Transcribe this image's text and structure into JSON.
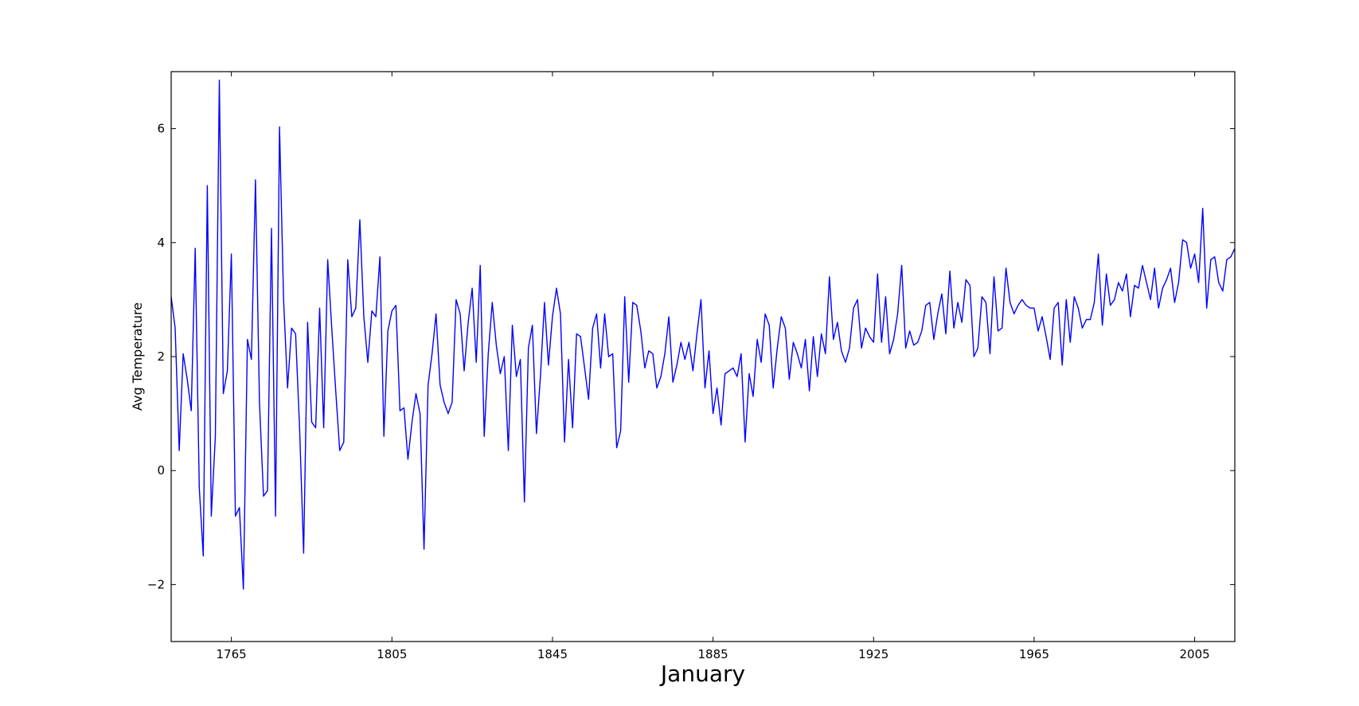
{
  "chart_data": {
    "type": "line",
    "title": "",
    "xlabel": "January",
    "ylabel": "Avg Temperature",
    "xlim": [
      1750,
      2015
    ],
    "ylim": [
      -3,
      7
    ],
    "grid": false,
    "color": "#0000ff",
    "x_ticks": [
      1765,
      1805,
      1845,
      1885,
      1925,
      1965,
      2005
    ],
    "x_tick_labels": [
      "1765",
      "1805",
      "1845",
      "1885",
      "1925",
      "1965",
      "2005"
    ],
    "y_ticks": [
      -2,
      0,
      2,
      4,
      6
    ],
    "y_tick_labels": [
      "−2",
      "0",
      "2",
      "4",
      "6"
    ],
    "series": [
      {
        "values": [
          [
            1750,
            3.05
          ],
          [
            1751,
            2.5
          ],
          [
            1752,
            0.35
          ],
          [
            1753,
            2.05
          ],
          [
            1754,
            1.6
          ],
          [
            1755,
            1.05
          ],
          [
            1756,
            3.9
          ],
          [
            1757,
            -0.3
          ],
          [
            1758,
            -1.5
          ],
          [
            1759,
            5.0
          ],
          [
            1760,
            -0.8
          ],
          [
            1761,
            0.6
          ],
          [
            1762,
            6.85
          ],
          [
            1763,
            1.35
          ],
          [
            1764,
            1.75
          ],
          [
            1765,
            3.8
          ],
          [
            1766,
            -0.8
          ],
          [
            1767,
            -0.65
          ],
          [
            1768,
            -2.08
          ],
          [
            1769,
            2.3
          ],
          [
            1770,
            1.95
          ],
          [
            1771,
            5.1
          ],
          [
            1772,
            1.2
          ],
          [
            1773,
            -0.45
          ],
          [
            1774,
            -0.35
          ],
          [
            1775,
            4.25
          ],
          [
            1776,
            -0.8
          ],
          [
            1777,
            6.03
          ],
          [
            1778,
            3.0
          ],
          [
            1779,
            1.45
          ],
          [
            1780,
            2.5
          ],
          [
            1781,
            2.4
          ],
          [
            1782,
            0.75
          ],
          [
            1783,
            -1.45
          ],
          [
            1784,
            2.6
          ],
          [
            1785,
            0.85
          ],
          [
            1786,
            0.75
          ],
          [
            1787,
            2.85
          ],
          [
            1788,
            0.75
          ],
          [
            1789,
            3.7
          ],
          [
            1790,
            2.5
          ],
          [
            1791,
            1.4
          ],
          [
            1792,
            0.35
          ],
          [
            1793,
            0.5
          ],
          [
            1794,
            3.7
          ],
          [
            1795,
            2.7
          ],
          [
            1796,
            2.85
          ],
          [
            1797,
            4.4
          ],
          [
            1798,
            2.7
          ],
          [
            1799,
            1.9
          ],
          [
            1800,
            2.8
          ],
          [
            1801,
            2.7
          ],
          [
            1802,
            3.75
          ],
          [
            1803,
            0.6
          ],
          [
            1804,
            2.45
          ],
          [
            1805,
            2.8
          ],
          [
            1806,
            2.9
          ],
          [
            1807,
            1.05
          ],
          [
            1808,
            1.1
          ],
          [
            1809,
            0.2
          ],
          [
            1810,
            0.85
          ],
          [
            1811,
            1.35
          ],
          [
            1812,
            1.0
          ],
          [
            1813,
            -1.38
          ],
          [
            1814,
            1.5
          ],
          [
            1815,
            2.05
          ],
          [
            1816,
            2.75
          ],
          [
            1817,
            1.5
          ],
          [
            1818,
            1.2
          ],
          [
            1819,
            1.0
          ],
          [
            1820,
            1.2
          ],
          [
            1821,
            3.0
          ],
          [
            1822,
            2.75
          ],
          [
            1823,
            1.75
          ],
          [
            1824,
            2.6
          ],
          [
            1825,
            3.2
          ],
          [
            1826,
            1.9
          ],
          [
            1827,
            3.6
          ],
          [
            1828,
            0.6
          ],
          [
            1829,
            2.05
          ],
          [
            1830,
            2.95
          ],
          [
            1831,
            2.2
          ],
          [
            1832,
            1.7
          ],
          [
            1833,
            2.0
          ],
          [
            1834,
            0.35
          ],
          [
            1835,
            2.55
          ],
          [
            1836,
            1.65
          ],
          [
            1837,
            1.95
          ],
          [
            1838,
            -0.55
          ],
          [
            1839,
            2.15
          ],
          [
            1840,
            2.55
          ],
          [
            1841,
            0.65
          ],
          [
            1842,
            1.65
          ],
          [
            1843,
            2.95
          ],
          [
            1844,
            1.85
          ],
          [
            1845,
            2.7
          ],
          [
            1846,
            3.2
          ],
          [
            1847,
            2.75
          ],
          [
            1848,
            0.5
          ],
          [
            1849,
            1.95
          ],
          [
            1850,
            0.75
          ],
          [
            1851,
            2.4
          ],
          [
            1852,
            2.35
          ],
          [
            1853,
            1.8
          ],
          [
            1854,
            1.25
          ],
          [
            1855,
            2.5
          ],
          [
            1856,
            2.75
          ],
          [
            1857,
            1.8
          ],
          [
            1858,
            2.75
          ],
          [
            1859,
            2.0
          ],
          [
            1860,
            2.05
          ],
          [
            1861,
            0.4
          ],
          [
            1862,
            0.7
          ],
          [
            1863,
            3.05
          ],
          [
            1864,
            1.55
          ],
          [
            1865,
            2.95
          ],
          [
            1866,
            2.9
          ],
          [
            1867,
            2.45
          ],
          [
            1868,
            1.8
          ],
          [
            1869,
            2.1
          ],
          [
            1870,
            2.05
          ],
          [
            1871,
            1.45
          ],
          [
            1872,
            1.65
          ],
          [
            1873,
            2.05
          ],
          [
            1874,
            2.7
          ],
          [
            1875,
            1.55
          ],
          [
            1876,
            1.85
          ],
          [
            1877,
            2.25
          ],
          [
            1878,
            1.95
          ],
          [
            1879,
            2.25
          ],
          [
            1880,
            1.75
          ],
          [
            1881,
            2.4
          ],
          [
            1882,
            3.0
          ],
          [
            1883,
            1.45
          ],
          [
            1884,
            2.1
          ],
          [
            1885,
            1.0
          ],
          [
            1886,
            1.45
          ],
          [
            1887,
            0.8
          ],
          [
            1888,
            1.7
          ],
          [
            1889,
            1.75
          ],
          [
            1890,
            1.8
          ],
          [
            1891,
            1.65
          ],
          [
            1892,
            2.05
          ],
          [
            1893,
            0.5
          ],
          [
            1894,
            1.7
          ],
          [
            1895,
            1.3
          ],
          [
            1896,
            2.3
          ],
          [
            1897,
            1.9
          ],
          [
            1898,
            2.75
          ],
          [
            1899,
            2.55
          ],
          [
            1900,
            1.45
          ],
          [
            1901,
            2.15
          ],
          [
            1902,
            2.7
          ],
          [
            1903,
            2.5
          ],
          [
            1904,
            1.6
          ],
          [
            1905,
            2.25
          ],
          [
            1906,
            2.05
          ],
          [
            1907,
            1.8
          ],
          [
            1908,
            2.3
          ],
          [
            1909,
            1.4
          ],
          [
            1910,
            2.35
          ],
          [
            1911,
            1.65
          ],
          [
            1912,
            2.4
          ],
          [
            1913,
            2.05
          ],
          [
            1914,
            3.4
          ],
          [
            1915,
            2.3
          ],
          [
            1916,
            2.6
          ],
          [
            1917,
            2.1
          ],
          [
            1918,
            1.9
          ],
          [
            1919,
            2.15
          ],
          [
            1920,
            2.85
          ],
          [
            1921,
            3.0
          ],
          [
            1922,
            2.15
          ],
          [
            1923,
            2.5
          ],
          [
            1924,
            2.35
          ],
          [
            1925,
            2.25
          ],
          [
            1926,
            3.45
          ],
          [
            1927,
            2.25
          ],
          [
            1928,
            3.05
          ],
          [
            1929,
            2.05
          ],
          [
            1930,
            2.3
          ],
          [
            1931,
            2.75
          ],
          [
            1932,
            3.6
          ],
          [
            1933,
            2.15
          ],
          [
            1934,
            2.45
          ],
          [
            1935,
            2.2
          ],
          [
            1936,
            2.25
          ],
          [
            1937,
            2.45
          ],
          [
            1938,
            2.9
          ],
          [
            1939,
            2.95
          ],
          [
            1940,
            2.3
          ],
          [
            1941,
            2.75
          ],
          [
            1942,
            3.1
          ],
          [
            1943,
            2.4
          ],
          [
            1944,
            3.5
          ],
          [
            1945,
            2.5
          ],
          [
            1946,
            2.95
          ],
          [
            1947,
            2.6
          ],
          [
            1948,
            3.35
          ],
          [
            1949,
            3.25
          ],
          [
            1950,
            2.0
          ],
          [
            1951,
            2.15
          ],
          [
            1952,
            3.05
          ],
          [
            1953,
            2.95
          ],
          [
            1954,
            2.05
          ],
          [
            1955,
            3.4
          ],
          [
            1956,
            2.45
          ],
          [
            1957,
            2.5
          ],
          [
            1958,
            3.55
          ],
          [
            1959,
            2.95
          ],
          [
            1960,
            2.75
          ],
          [
            1961,
            2.9
          ],
          [
            1962,
            3.0
          ],
          [
            1963,
            2.9
          ],
          [
            1964,
            2.85
          ],
          [
            1965,
            2.85
          ],
          [
            1966,
            2.45
          ],
          [
            1967,
            2.7
          ],
          [
            1968,
            2.35
          ],
          [
            1969,
            1.95
          ],
          [
            1970,
            2.85
          ],
          [
            1971,
            2.95
          ],
          [
            1972,
            1.85
          ],
          [
            1973,
            3.0
          ],
          [
            1974,
            2.25
          ],
          [
            1975,
            3.05
          ],
          [
            1976,
            2.85
          ],
          [
            1977,
            2.5
          ],
          [
            1978,
            2.65
          ],
          [
            1979,
            2.65
          ],
          [
            1980,
            2.95
          ],
          [
            1981,
            3.8
          ],
          [
            1982,
            2.55
          ],
          [
            1983,
            3.45
          ],
          [
            1984,
            2.9
          ],
          [
            1985,
            3.0
          ],
          [
            1986,
            3.3
          ],
          [
            1987,
            3.15
          ],
          [
            1988,
            3.45
          ],
          [
            1989,
            2.7
          ],
          [
            1990,
            3.25
          ],
          [
            1991,
            3.2
          ],
          [
            1992,
            3.6
          ],
          [
            1993,
            3.3
          ],
          [
            1994,
            3.0
          ],
          [
            1995,
            3.55
          ],
          [
            1996,
            2.85
          ],
          [
            1997,
            3.2
          ],
          [
            1998,
            3.35
          ],
          [
            1999,
            3.55
          ],
          [
            2000,
            2.95
          ],
          [
            2001,
            3.3
          ],
          [
            2002,
            4.05
          ],
          [
            2003,
            4.0
          ],
          [
            2004,
            3.55
          ],
          [
            2005,
            3.8
          ],
          [
            2006,
            3.3
          ],
          [
            2007,
            4.6
          ],
          [
            2008,
            2.85
          ],
          [
            2009,
            3.7
          ],
          [
            2010,
            3.75
          ],
          [
            2011,
            3.3
          ],
          [
            2012,
            3.15
          ],
          [
            2013,
            3.7
          ],
          [
            2014,
            3.75
          ],
          [
            2015,
            3.9
          ]
        ]
      }
    ]
  }
}
